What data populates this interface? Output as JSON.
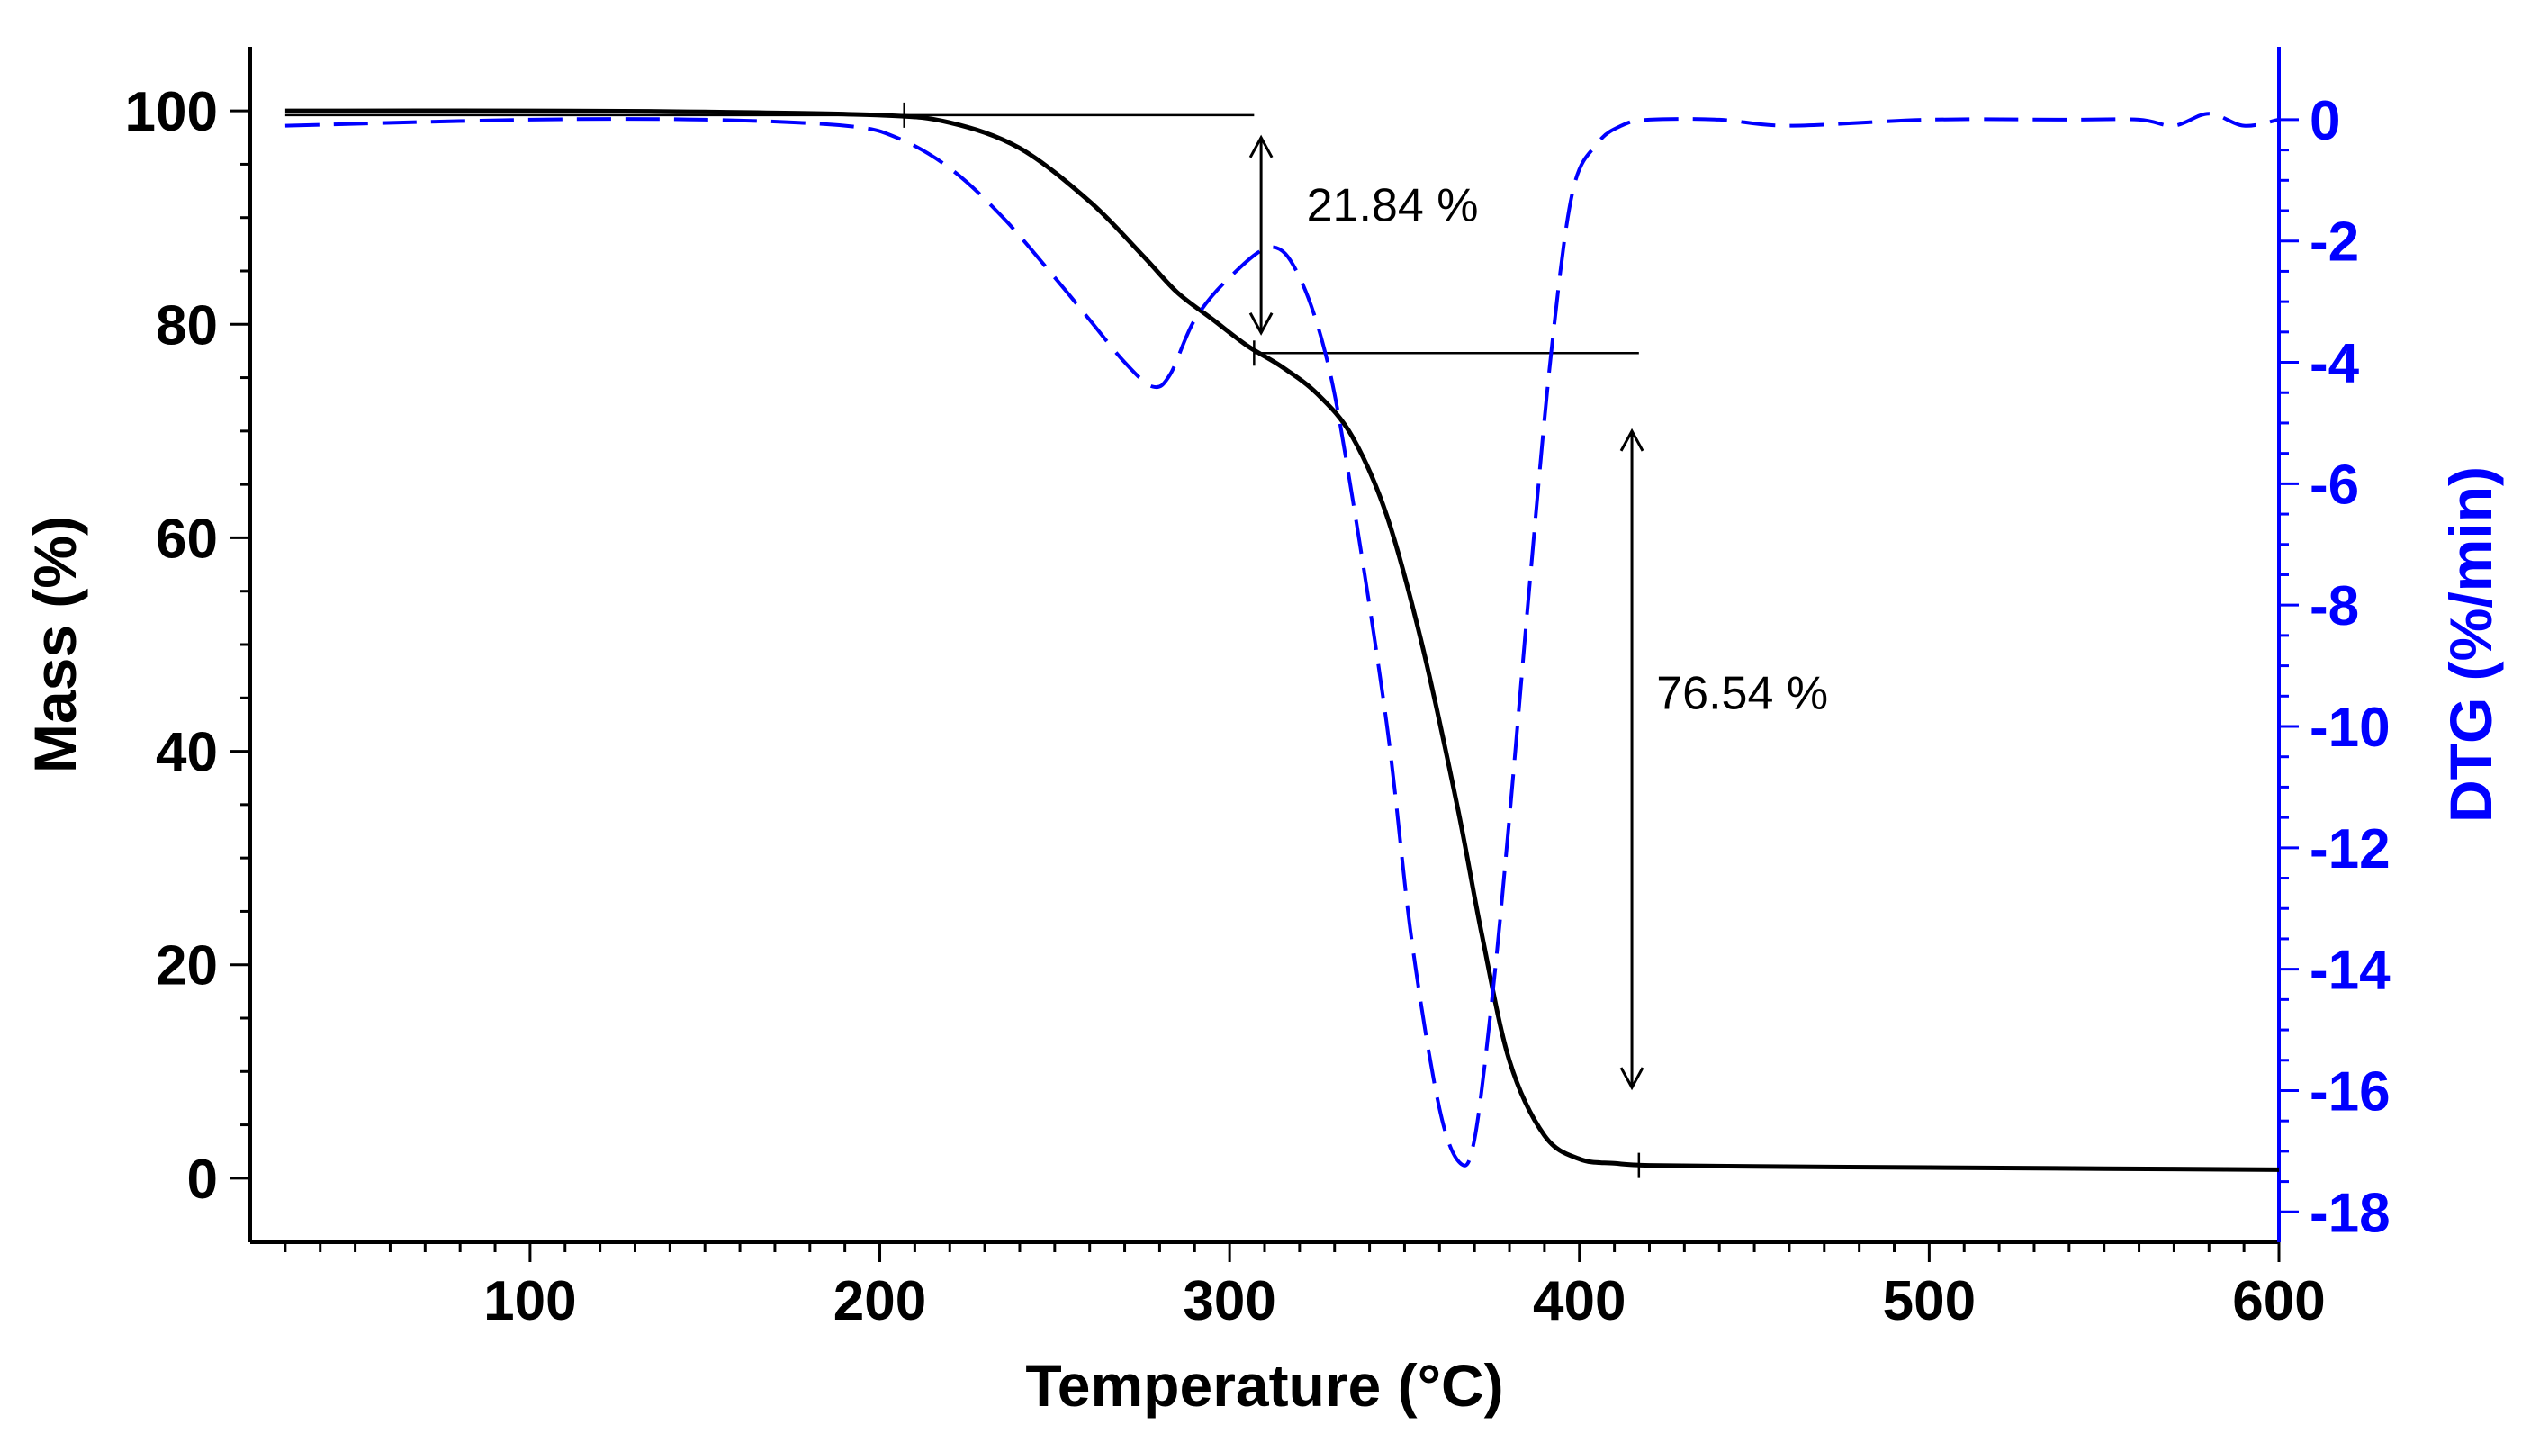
{
  "chart_data": {
    "type": "line",
    "x": {
      "label": "Temperature (°C)",
      "range": [
        20,
        600
      ],
      "ticks": [
        100,
        200,
        300,
        400,
        500,
        600
      ],
      "tick_labels": [
        "100",
        "200",
        "300",
        "400",
        "500",
        "600"
      ]
    },
    "y_left": {
      "label": "Mass (%)",
      "range": [
        -6,
        106
      ],
      "ticks": [
        0,
        20,
        40,
        60,
        80,
        100
      ],
      "tick_labels": [
        "0",
        "20",
        "40",
        "60",
        "80",
        "100"
      ],
      "color": "#000000"
    },
    "y_right": {
      "label": "DTG (%/min)",
      "range": [
        -18.5,
        1.2
      ],
      "ticks": [
        0,
        -2,
        -4,
        -6,
        -8,
        -10,
        -12,
        -14,
        -16,
        -18
      ],
      "tick_labels": [
        "0",
        "-2",
        "-4",
        "-6",
        "-8",
        "-10",
        "-12",
        "-14",
        "-16",
        "-18"
      ],
      "color": "#0000ff"
    },
    "series": [
      {
        "name": "Mass",
        "axis": "left",
        "style": "solid",
        "color": "#000000",
        "x": [
          30,
          100,
          150,
          200,
          220,
          240,
          260,
          275,
          285,
          295,
          305,
          315,
          325,
          335,
          345,
          355,
          365,
          372,
          380,
          390,
          400,
          410,
          420,
          450,
          500,
          550,
          600
        ],
        "y": [
          100,
          100,
          99.9,
          99.6,
          98.9,
          96.5,
          91.5,
          86.5,
          83,
          80.5,
          78,
          76,
          73.5,
          69.5,
          62,
          50,
          35,
          23,
          11,
          4,
          1.8,
          1.4,
          1.2,
          1.1,
          1.0,
          0.9,
          0.8
        ]
      },
      {
        "name": "DTG",
        "axis": "right",
        "style": "dashed",
        "color": "#0000ff",
        "x": [
          30,
          100,
          150,
          190,
          205,
          220,
          235,
          250,
          260,
          270,
          278,
          283,
          290,
          300,
          312,
          320,
          328,
          335,
          345,
          352,
          360,
          366,
          370,
          375,
          380,
          386,
          392,
          398,
          405,
          412,
          420,
          440,
          460,
          500,
          540,
          560,
          570,
          580,
          590,
          600
        ],
        "y": [
          -0.1,
          0,
          0,
          -0.1,
          -0.3,
          -0.8,
          -1.6,
          -2.6,
          -3.3,
          -4.0,
          -4.4,
          -4.2,
          -3.3,
          -2.6,
          -2.1,
          -2.6,
          -4.0,
          -6.2,
          -10,
          -13.5,
          -16.3,
          -17.2,
          -16.8,
          -14.5,
          -11.5,
          -7.5,
          -3.8,
          -1.2,
          -0.4,
          -0.1,
          0,
          0,
          -0.1,
          0,
          0,
          0,
          -0.1,
          0.1,
          -0.1,
          0
        ]
      }
    ],
    "annotations": [
      {
        "text": "21.84 %",
        "x": 322,
        "y_left": 91.2
      },
      {
        "text": "76.54 %",
        "x": 422,
        "y_left": 45.5
      }
    ],
    "reference_lines": [
      {
        "y_left": 99.6,
        "x_from": 30,
        "x_to": 307
      },
      {
        "y_left": 77.3,
        "x_from": 307,
        "x_to": 417
      }
    ],
    "arrows": [
      {
        "x": 309,
        "y_from": 97.5,
        "y_to": 79.2
      },
      {
        "x": 415,
        "y_from": 70,
        "y_to": 8.5
      }
    ],
    "end_markers": [
      {
        "x": 207,
        "y_left": 99.6
      },
      {
        "x": 307,
        "y_left": 77.3
      },
      {
        "x": 417,
        "y_left": 1.2
      }
    ]
  }
}
